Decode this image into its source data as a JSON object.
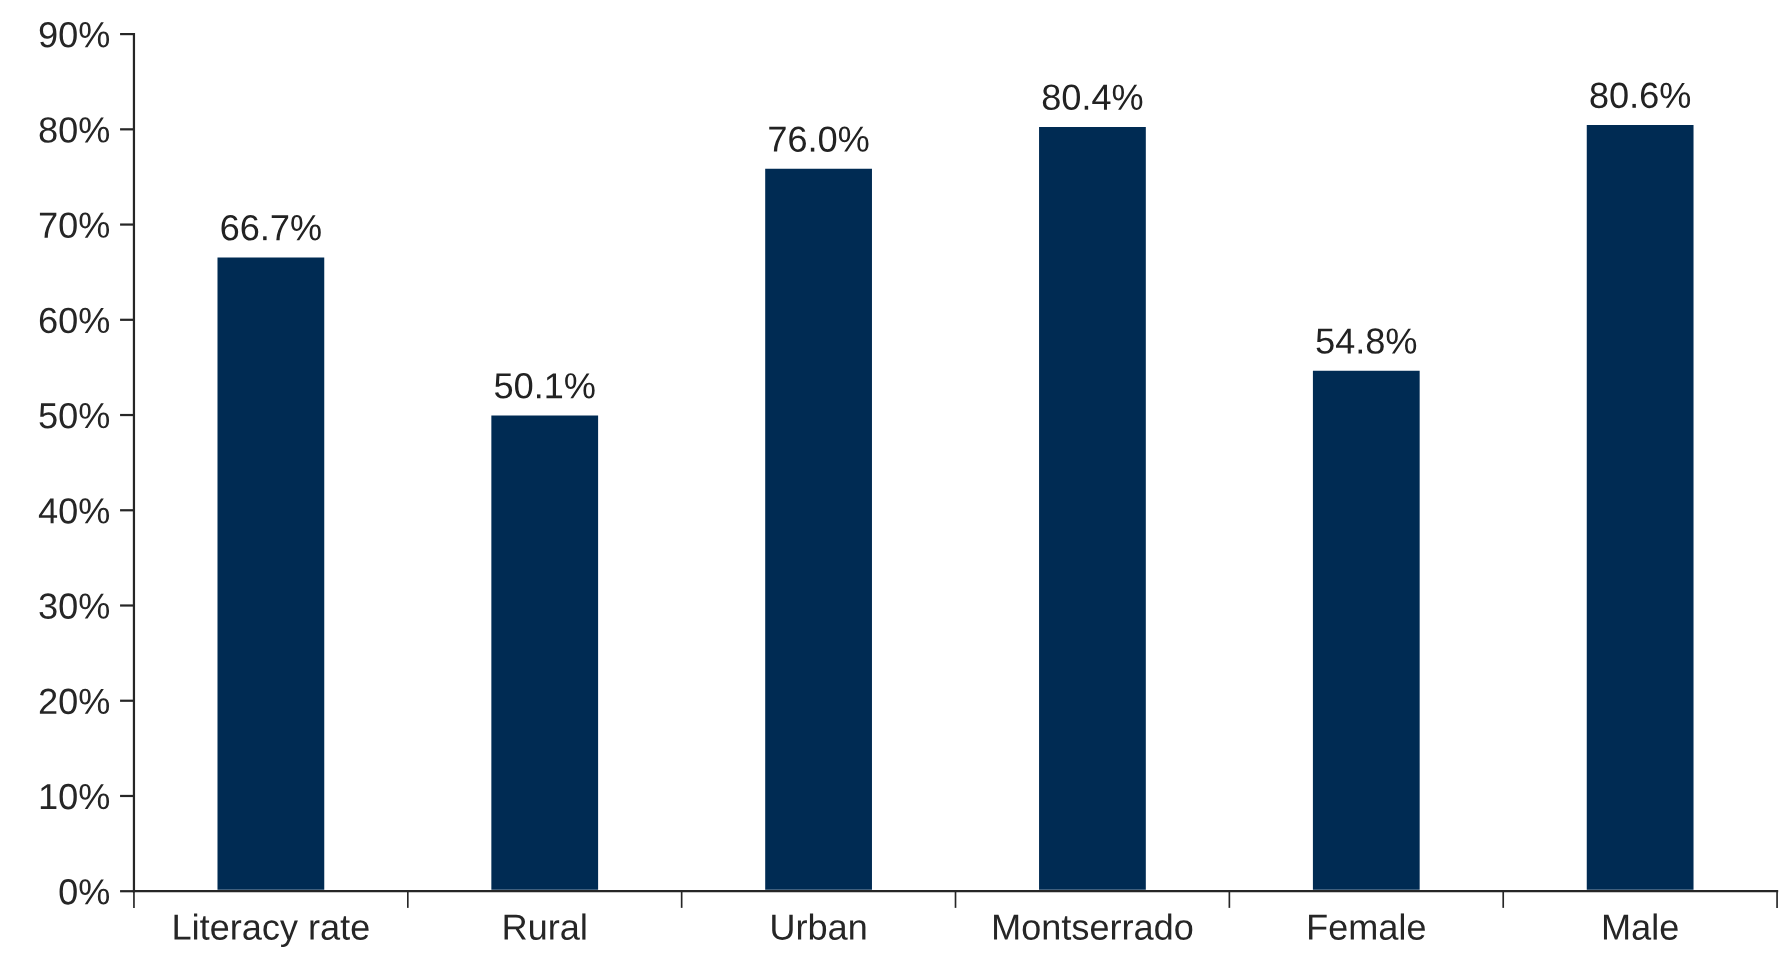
{
  "chart_data": {
    "type": "bar",
    "categories": [
      "Literacy rate",
      "Rural",
      "Urban",
      "Montserrado",
      "Female",
      "Male"
    ],
    "values": [
      66.7,
      50.1,
      76.0,
      80.4,
      54.8,
      80.6
    ],
    "value_labels": [
      "66.7%",
      "50.1%",
      "76.0%",
      "80.4%",
      "54.8%",
      "80.6%"
    ],
    "color": "#002b53",
    "ylim": [
      0,
      90
    ],
    "yticks": [
      {
        "value": 0,
        "label": "0%"
      },
      {
        "value": 10,
        "label": "10%"
      },
      {
        "value": 20,
        "label": "20%"
      },
      {
        "value": 30,
        "label": "30%"
      },
      {
        "value": 40,
        "label": "40%"
      },
      {
        "value": 50,
        "label": "50%"
      },
      {
        "value": 60,
        "label": "60%"
      },
      {
        "value": 70,
        "label": "70%"
      },
      {
        "value": 80,
        "label": "80%"
      },
      {
        "value": 90,
        "label": "90%"
      }
    ],
    "grid": false,
    "legend": false
  }
}
